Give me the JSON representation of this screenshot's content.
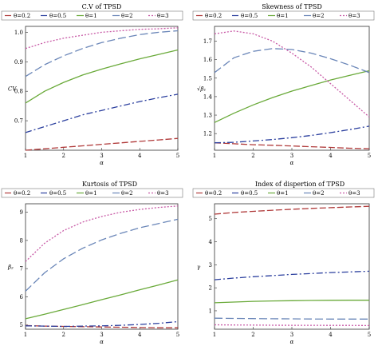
{
  "legend_labels": [
    "θ=0.2",
    "θ=0.5",
    "θ=1",
    "θ=2",
    "θ=3"
  ],
  "series_colors": [
    "#b03a3a",
    "#2b3f9e",
    "#6aaa3a",
    "#6a86b8",
    "#c85aa6"
  ],
  "series_dash": [
    "8,3",
    "8,3,2,3",
    "",
    "10,4",
    "2,2"
  ],
  "chart_data": [
    {
      "type": "line",
      "title": "C.V of TPSD",
      "xlabel": "α",
      "ylabel": "CV",
      "xlim": [
        1,
        5
      ],
      "ylim": [
        0.6,
        1.02
      ],
      "xticks": [
        "1",
        "2",
        "3",
        "4",
        "5"
      ],
      "yticks": [
        {
          "v": 0.7,
          "t": "0.7"
        },
        {
          "v": 0.8,
          "t": "0.8"
        },
        {
          "v": 0.9,
          "t": "0.9"
        },
        {
          "v": 1.0,
          "t": "1.0"
        }
      ],
      "x": [
        1,
        1.5,
        2,
        2.5,
        3,
        3.5,
        4,
        4.5,
        5
      ],
      "series": [
        {
          "name": "θ=0.2",
          "values": [
            0.6,
            0.605,
            0.61,
            0.615,
            0.62,
            0.625,
            0.63,
            0.635,
            0.64
          ]
        },
        {
          "name": "θ=0.5",
          "values": [
            0.66,
            0.68,
            0.7,
            0.72,
            0.735,
            0.75,
            0.765,
            0.778,
            0.79
          ]
        },
        {
          "name": "θ=1",
          "values": [
            0.76,
            0.8,
            0.83,
            0.855,
            0.875,
            0.893,
            0.91,
            0.925,
            0.94
          ]
        },
        {
          "name": "θ=2",
          "values": [
            0.85,
            0.89,
            0.92,
            0.945,
            0.965,
            0.98,
            0.992,
            1.0,
            1.005
          ]
        },
        {
          "name": "θ=3",
          "values": [
            0.945,
            0.965,
            0.98,
            0.99,
            1.0,
            1.005,
            1.01,
            1.012,
            1.015
          ]
        }
      ]
    },
    {
      "type": "line",
      "title": "Skewness of TPSD",
      "xlabel": "α",
      "ylabel": "√β₁",
      "xlim": [
        1,
        5
      ],
      "ylim": [
        1.11,
        1.78
      ],
      "xticks": [
        "1",
        "2",
        "3",
        "4",
        "5"
      ],
      "yticks": [
        {
          "v": 1.2,
          "t": "1.2"
        },
        {
          "v": 1.3,
          "t": "1.3"
        },
        {
          "v": 1.4,
          "t": "1.4"
        },
        {
          "v": 1.5,
          "t": "1.5"
        },
        {
          "v": 1.6,
          "t": "1.6"
        },
        {
          "v": 1.7,
          "t": "1.7"
        }
      ],
      "x": [
        1,
        1.5,
        2,
        2.5,
        3,
        3.5,
        4,
        4.5,
        5
      ],
      "series": [
        {
          "name": "θ=0.2",
          "values": [
            1.15,
            1.145,
            1.14,
            1.137,
            1.133,
            1.129,
            1.125,
            1.121,
            1.118
          ]
        },
        {
          "name": "θ=0.5",
          "values": [
            1.15,
            1.153,
            1.16,
            1.168,
            1.178,
            1.19,
            1.205,
            1.222,
            1.24
          ]
        },
        {
          "name": "θ=1",
          "values": [
            1.26,
            1.31,
            1.355,
            1.395,
            1.43,
            1.46,
            1.49,
            1.515,
            1.54
          ]
        },
        {
          "name": "θ=2",
          "values": [
            1.53,
            1.61,
            1.645,
            1.66,
            1.655,
            1.635,
            1.605,
            1.57,
            1.53
          ]
        },
        {
          "name": "θ=3",
          "values": [
            1.74,
            1.755,
            1.74,
            1.7,
            1.635,
            1.56,
            1.47,
            1.38,
            1.29
          ]
        }
      ]
    },
    {
      "type": "line",
      "title": "Kurtosis of TPSD",
      "xlabel": "α",
      "ylabel": "β₂",
      "xlim": [
        1,
        5
      ],
      "ylim": [
        4.85,
        9.3
      ],
      "xticks": [
        "1",
        "2",
        "3",
        "4",
        "5"
      ],
      "yticks": [
        {
          "v": 5,
          "t": "5"
        },
        {
          "v": 6,
          "t": "6"
        },
        {
          "v": 7,
          "t": "7"
        },
        {
          "v": 8,
          "t": "8"
        },
        {
          "v": 9,
          "t": "9"
        }
      ],
      "x": [
        1,
        1.5,
        2,
        2.5,
        3,
        3.5,
        4,
        4.5,
        5
      ],
      "series": [
        {
          "name": "θ=0.2",
          "values": [
            4.98,
            4.96,
            4.95,
            4.94,
            4.93,
            4.92,
            4.91,
            4.9,
            4.9
          ]
        },
        {
          "name": "θ=0.5",
          "values": [
            4.97,
            4.96,
            4.95,
            4.96,
            4.97,
            4.99,
            5.02,
            5.06,
            5.12
          ]
        },
        {
          "name": "θ=1",
          "values": [
            5.22,
            5.38,
            5.55,
            5.72,
            5.9,
            6.07,
            6.25,
            6.42,
            6.6
          ]
        },
        {
          "name": "θ=2",
          "values": [
            6.2,
            6.85,
            7.35,
            7.72,
            8.02,
            8.25,
            8.45,
            8.6,
            8.75
          ]
        },
        {
          "name": "θ=3",
          "values": [
            7.25,
            7.9,
            8.35,
            8.65,
            8.85,
            9.0,
            9.1,
            9.17,
            9.22
          ]
        }
      ]
    },
    {
      "type": "line",
      "title": "Index of dispertion of TPSD",
      "xlabel": "α",
      "ylabel": "γ",
      "xlim": [
        1,
        5
      ],
      "ylim": [
        0.2,
        5.65
      ],
      "xticks": [
        "1",
        "2",
        "3",
        "4",
        "5"
      ],
      "yticks": [
        {
          "v": 1,
          "t": "1"
        },
        {
          "v": 2,
          "t": "2"
        },
        {
          "v": 3,
          "t": "3"
        },
        {
          "v": 4,
          "t": "4"
        },
        {
          "v": 5,
          "t": "5"
        }
      ],
      "x": [
        1,
        1.5,
        2,
        2.5,
        3,
        3.5,
        4,
        4.5,
        5
      ],
      "series": [
        {
          "name": "θ=0.2",
          "values": [
            5.2,
            5.27,
            5.32,
            5.37,
            5.41,
            5.45,
            5.48,
            5.51,
            5.54
          ]
        },
        {
          "name": "θ=0.5",
          "values": [
            2.35,
            2.42,
            2.48,
            2.53,
            2.58,
            2.62,
            2.66,
            2.69,
            2.72
          ]
        },
        {
          "name": "θ=1",
          "values": [
            1.35,
            1.38,
            1.41,
            1.43,
            1.44,
            1.45,
            1.455,
            1.46,
            1.46
          ]
        },
        {
          "name": "θ=2",
          "values": [
            0.68,
            0.67,
            0.66,
            0.655,
            0.65,
            0.645,
            0.64,
            0.64,
            0.64
          ]
        },
        {
          "name": "θ=3",
          "values": [
            0.39,
            0.385,
            0.38,
            0.375,
            0.37,
            0.37,
            0.365,
            0.365,
            0.36
          ]
        }
      ]
    }
  ]
}
